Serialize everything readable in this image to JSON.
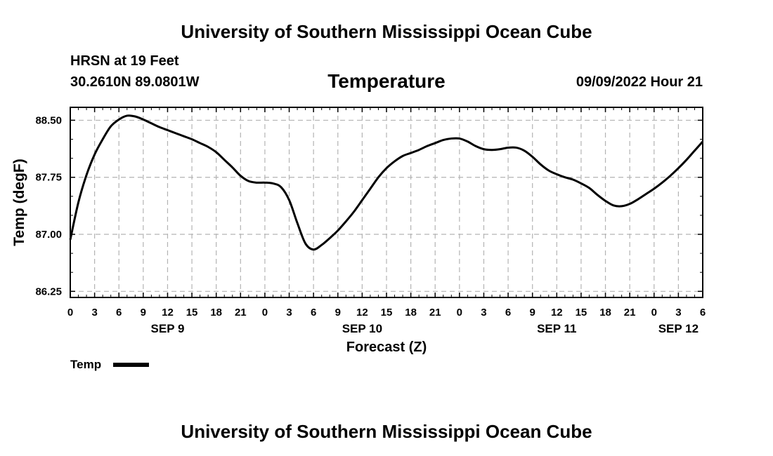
{
  "header": {
    "title_top": "University of Southern Mississippi Ocean Cube",
    "station": "HRSN at 19 Feet",
    "coordinates": "30.2610N  89.0801W",
    "chart_title": "Temperature",
    "datetime": "09/09/2022 Hour 21",
    "title_bottom": "University of Southern Mississippi Ocean Cube"
  },
  "chart_data": {
    "type": "line",
    "title": "Temperature",
    "xlabel": "Forecast (Z)",
    "ylabel": "Temp (degF)",
    "xlim": [
      0,
      78
    ],
    "ylim": [
      86.17,
      88.67
    ],
    "yticks": [
      86.25,
      87.0,
      87.75,
      88.5
    ],
    "ytick_labels": [
      "86.25",
      "87.00",
      "87.75",
      "88.50"
    ],
    "xtick_labels": [
      "0",
      "3",
      "6",
      "9",
      "12",
      "15",
      "18",
      "21",
      "0",
      "3",
      "6",
      "9",
      "12",
      "15",
      "18",
      "21",
      "0",
      "3",
      "6",
      "9",
      "12",
      "15",
      "18",
      "21",
      "0",
      "3",
      "6"
    ],
    "day_labels": [
      {
        "label": "SEP 9",
        "x": 12
      },
      {
        "label": "SEP 10",
        "x": 36
      },
      {
        "label": "SEP 11",
        "x": 60
      },
      {
        "label": "SEP 12",
        "x": 75
      }
    ],
    "legend": [
      {
        "label": "Temp",
        "position": "bottom-left"
      }
    ],
    "grid": true,
    "series": [
      {
        "name": "Temp",
        "x": [
          0,
          1,
          2,
          3,
          4,
          5,
          6,
          7,
          8,
          9,
          10,
          11,
          12,
          13,
          14,
          15,
          16,
          17,
          18,
          19,
          20,
          21,
          22,
          23,
          24,
          25,
          26,
          27,
          28,
          29,
          30,
          31,
          32,
          33,
          34,
          35,
          36,
          37,
          38,
          39,
          40,
          41,
          42,
          43,
          44,
          45,
          46,
          47,
          48,
          49,
          50,
          51,
          52,
          53,
          54,
          55,
          56,
          57,
          58,
          59,
          60,
          61,
          62,
          63,
          64,
          65,
          66,
          67,
          68,
          69,
          70,
          71,
          72,
          73,
          74,
          75,
          76,
          77,
          78
        ],
        "values": [
          86.93,
          87.42,
          87.78,
          88.05,
          88.25,
          88.42,
          88.51,
          88.56,
          88.55,
          88.51,
          88.46,
          88.41,
          88.37,
          88.33,
          88.29,
          88.25,
          88.2,
          88.15,
          88.08,
          87.98,
          87.88,
          87.77,
          87.7,
          87.68,
          87.68,
          87.67,
          87.62,
          87.45,
          87.15,
          86.88,
          86.8,
          86.86,
          86.95,
          87.05,
          87.17,
          87.3,
          87.45,
          87.6,
          87.75,
          87.87,
          87.96,
          88.03,
          88.07,
          88.11,
          88.16,
          88.2,
          88.24,
          88.26,
          88.26,
          88.22,
          88.16,
          88.12,
          88.11,
          88.12,
          88.14,
          88.14,
          88.1,
          88.02,
          87.92,
          87.84,
          87.79,
          87.75,
          87.72,
          87.67,
          87.61,
          87.52,
          87.44,
          87.38,
          87.37,
          87.4,
          87.46,
          87.53,
          87.6,
          87.68,
          87.77,
          87.87,
          87.98,
          88.1,
          88.22
        ]
      }
    ]
  }
}
